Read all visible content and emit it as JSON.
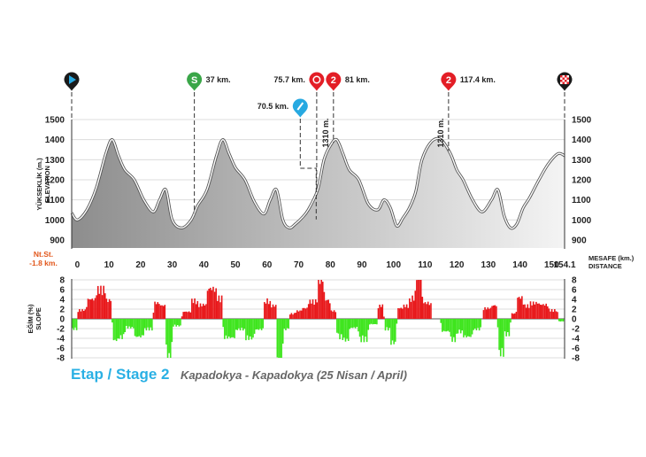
{
  "footer": {
    "stage_title": "Etap / Stage 2",
    "route": "Kapadokya - Kapadokya (25 Nisan / April)"
  },
  "colors": {
    "climb": "#e8181b",
    "descent": "#3ee51d",
    "start_marker": "#1a1a1a",
    "start_icon": "#27a9e1",
    "sprint_marker": "#3aa648",
    "feed_marker": "#27a9e1",
    "kom_marker": "#e31e26",
    "finish_marker": "#1a1a1a"
  },
  "chart_data": [
    {
      "type": "area",
      "title": "",
      "ylabel": "YÜKSEKLİK (m.)",
      "ylabel_en": "ELEVATION",
      "xlabel": "MESAFE (km.)",
      "xlabel_en": "DISTANCE",
      "xlim": [
        -1.8,
        154.1
      ],
      "ylim": [
        860,
        1500
      ],
      "y_ticks": [
        "1500",
        "1400",
        "1300",
        "1200",
        "1100",
        "1000",
        "900"
      ],
      "x_ticks": [
        "0",
        "10",
        "20",
        "30",
        "40",
        "50",
        "60",
        "70",
        "80",
        "90",
        "100",
        "110",
        "120",
        "130",
        "140",
        "150",
        "154.1"
      ],
      "start_label": "Nt.St.",
      "start_offset_label": "-1.8 km.",
      "x": [
        -1.8,
        0,
        3,
        6,
        9,
        11,
        13,
        15,
        18,
        21,
        24,
        26,
        28,
        30,
        33,
        36,
        38,
        41,
        44,
        46,
        48,
        50,
        53,
        56,
        59,
        61,
        63,
        65,
        67,
        69,
        71,
        73,
        76,
        78,
        80,
        82,
        84,
        86,
        89,
        92,
        95,
        97,
        99,
        101,
        103,
        105,
        107,
        109,
        112,
        115,
        118,
        120,
        122,
        125,
        128,
        131,
        133,
        135,
        137,
        139,
        141,
        143,
        146,
        149,
        152,
        154.1
      ],
      "elevation": [
        1035,
        1000,
        1050,
        1160,
        1330,
        1400,
        1320,
        1250,
        1200,
        1100,
        1040,
        1100,
        1150,
        1000,
        960,
        1000,
        1070,
        1150,
        1320,
        1400,
        1330,
        1260,
        1200,
        1090,
        1030,
        1100,
        1150,
        1000,
        960,
        980,
        1010,
        1050,
        1150,
        1300,
        1370,
        1400,
        1330,
        1250,
        1200,
        1080,
        1050,
        1100,
        1060,
        970,
        1010,
        1060,
        1140,
        1300,
        1390,
        1400,
        1330,
        1250,
        1200,
        1100,
        1040,
        1100,
        1150,
        1020,
        960,
        980,
        1060,
        1110,
        1200,
        1280,
        1330,
        1320
      ],
      "series_style": "grey gradient fill, white outline"
    },
    {
      "type": "bar",
      "title": "",
      "ylabel": "EĞİM (%)",
      "ylabel_en": "SLOPE",
      "xlim": [
        -1.8,
        154.1
      ],
      "ylim": [
        -8,
        8
      ],
      "y_ticks": [
        "8",
        "6",
        "4",
        "2",
        "0",
        "-2",
        "-4",
        "-6",
        "-8"
      ],
      "positive_color": "#e8181b",
      "negative_color": "#3ee51d",
      "note": "slope derived from elevation profile segments"
    }
  ],
  "markers": [
    {
      "type": "start",
      "km": -1.8,
      "label": ""
    },
    {
      "type": "sprint",
      "km": 37,
      "label": "37 km.",
      "symbol": "S"
    },
    {
      "type": "feed",
      "km": 70.5,
      "label": "70.5 km."
    },
    {
      "type": "bonus",
      "km": 75.7,
      "label": "75.7 km."
    },
    {
      "type": "kom",
      "km": 81,
      "label": "81 km.",
      "symbol": "2",
      "altitude_label": "1310 m."
    },
    {
      "type": "kom",
      "km": 117.4,
      "label": "117.4 km.",
      "symbol": "2",
      "altitude_label": "1310 m."
    },
    {
      "type": "finish",
      "km": 154.1,
      "label": ""
    }
  ]
}
